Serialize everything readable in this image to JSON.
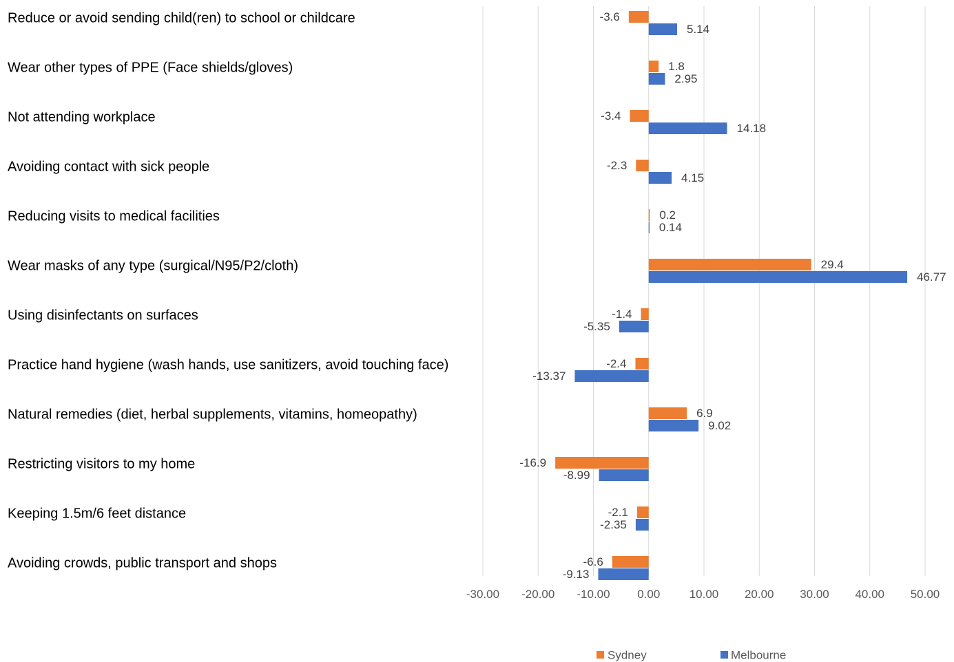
{
  "chart_data": {
    "type": "bar",
    "orientation": "horizontal",
    "categories": [
      "Reduce or avoid sending child(ren) to school or childcare",
      "Wear other types of PPE (Face shields/gloves)",
      "Not attending workplace",
      "Avoiding contact with sick people",
      "Reducing visits to medical facilities",
      "Wear masks of any type (surgical/N95/P2/cloth)",
      "Using disinfectants on surfaces",
      "Practice hand hygiene (wash hands, use sanitizers, avoid touching face)",
      "Natural remedies (diet, herbal supplements, vitamins, homeopathy)",
      "Restricting visitors to my home",
      "Keeping 1.5m/6 feet distance",
      "Avoiding crowds, public transport and shops"
    ],
    "series": [
      {
        "name": "Sydney",
        "color": "#ED7D31",
        "values": [
          -3.6,
          1.8,
          -3.4,
          -2.3,
          0.2,
          29.4,
          -1.4,
          -2.4,
          6.9,
          -16.9,
          -2.1,
          -6.6
        ],
        "labels": [
          "-3.6",
          "1.8",
          "-3.4",
          "-2.3",
          "0.2",
          "29.4",
          "-1.4",
          "-2.4",
          "6.9",
          "-16.9",
          "-2.1",
          "-6.6"
        ]
      },
      {
        "name": "Melbourne",
        "color": "#4472C4",
        "values": [
          5.14,
          2.95,
          14.18,
          4.15,
          0.14,
          46.77,
          -5.35,
          -13.37,
          9.02,
          -8.99,
          -2.35,
          -9.13
        ],
        "labels": [
          "5.14",
          "2.95",
          "14.18",
          "4.15",
          "0.14",
          "46.77",
          "-5.35",
          "-13.37",
          "9.02",
          "-8.99",
          "-2.35",
          "-9.13"
        ]
      }
    ],
    "xlim": [
      -30,
      50
    ],
    "x_ticks": [
      -30,
      -20,
      -10,
      0,
      10,
      20,
      30,
      40,
      50
    ],
    "x_tick_labels": [
      "-30.00",
      "-20.00",
      "-10.00",
      "0.00",
      "10.00",
      "20.00",
      "30.00",
      "40.00",
      "50.00"
    ],
    "grid": "vertical",
    "legend": "bottom",
    "title": "",
    "xlabel": "",
    "ylabel": ""
  }
}
